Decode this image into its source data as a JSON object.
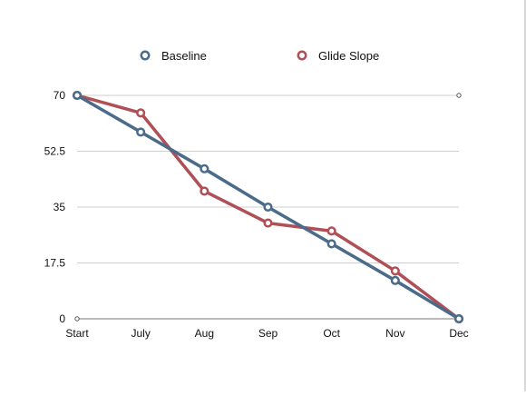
{
  "chart_data": {
    "type": "line",
    "categories": [
      "Start",
      "July",
      "Aug",
      "Sep",
      "Oct",
      "Nov",
      "Dec"
    ],
    "series": [
      {
        "name": "Baseline",
        "color": "#4a6b8a",
        "values": [
          70,
          58.5,
          47,
          35,
          23.5,
          12,
          0
        ]
      },
      {
        "name": "Glide Slope",
        "color": "#b04f55",
        "values": [
          70,
          64.5,
          40,
          30,
          27.5,
          15,
          0
        ]
      }
    ],
    "yticks": [
      0,
      17.5,
      35,
      52.5,
      70
    ],
    "ytick_labels": [
      "0",
      "17.5",
      "35",
      "52.5",
      "70"
    ],
    "ylim": [
      0,
      70
    ],
    "grid": true,
    "legend_position": "top",
    "title": "",
    "xlabel": "",
    "ylabel": ""
  }
}
